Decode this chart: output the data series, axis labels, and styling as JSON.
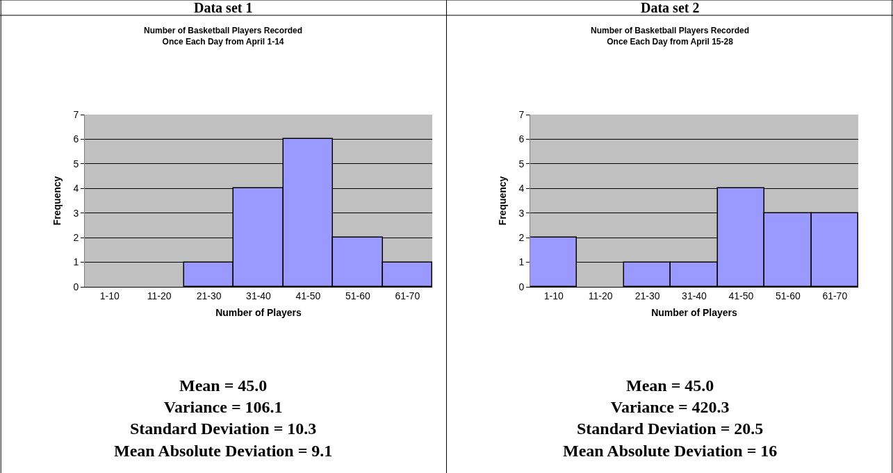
{
  "chart_data": [
    {
      "type": "bar",
      "title": "Number of Basketball Players Recorded\nOnce Each Day from April 1-14",
      "xlabel": "Number of Players",
      "ylabel": "Frequency",
      "categories": [
        "1-10",
        "11-20",
        "21-30",
        "31-40",
        "41-50",
        "51-60",
        "61-70"
      ],
      "values": [
        0,
        0,
        1,
        4,
        6,
        2,
        1
      ],
      "color": "#9999ff",
      "ylim": [
        0,
        7
      ],
      "yticks": [
        0,
        1,
        2,
        3,
        4,
        5,
        6,
        7
      ],
      "grid": "y",
      "annotations": [
        "Data set 1",
        "Mean = 45.0",
        "Variance = 106.1",
        "Standard Deviation = 10.3",
        "Mean Absolute Deviation = 9.1"
      ]
    },
    {
      "type": "bar",
      "title": "Number of Basketball Players Recorded\nOnce Each Day from April 15-28",
      "xlabel": "Number of Players",
      "ylabel": "Frequency",
      "categories": [
        "1-10",
        "11-20",
        "21-30",
        "31-40",
        "41-50",
        "51-60",
        "61-70"
      ],
      "values": [
        2,
        0,
        1,
        1,
        4,
        3,
        3
      ],
      "color": "#9999ff",
      "ylim": [
        0,
        7
      ],
      "yticks": [
        0,
        1,
        2,
        3,
        4,
        5,
        6,
        7
      ],
      "grid": "y",
      "annotations": [
        "Data set 2",
        "Mean = 45.0",
        "Variance = 420.3",
        "Standard Deviation = 20.5",
        "Mean Absolute Deviation = 16"
      ]
    }
  ]
}
